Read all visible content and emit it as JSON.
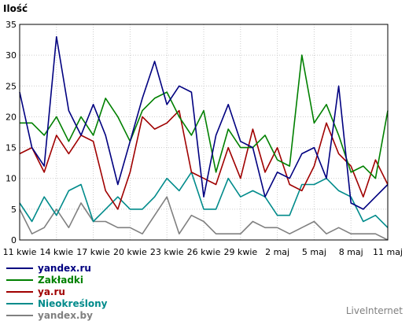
{
  "brand": "LiveInternet",
  "chart_data": {
    "type": "line",
    "ylabel": "Ilość",
    "ylim": [
      0,
      35
    ],
    "y_ticks": [
      0,
      5,
      10,
      15,
      20,
      25,
      30,
      35
    ],
    "x": [
      "11 kwie",
      "12 kwie",
      "13 kwie",
      "14 kwie",
      "15 kwie",
      "16 kwie",
      "17 kwie",
      "18 kwie",
      "19 kwie",
      "20 kwie",
      "21 kwie",
      "22 kwie",
      "23 kwie",
      "24 kwie",
      "25 kwie",
      "26 kwie",
      "27 kwie",
      "28 kwie",
      "29 kwie",
      "30 kwie",
      "1 maj",
      "2 maj",
      "3 maj",
      "4 maj",
      "5 maj",
      "6 maj",
      "7 maj",
      "8 maj",
      "9 maj",
      "10 maj",
      "11 maj"
    ],
    "x_tick_labels": [
      {
        "index": 0,
        "label": "11 kwie"
      },
      {
        "index": 3,
        "label": "14 kwie"
      },
      {
        "index": 6,
        "label": "17 kwie"
      },
      {
        "index": 9,
        "label": "20 kwie"
      },
      {
        "index": 12,
        "label": "23 kwie"
      },
      {
        "index": 15,
        "label": "26 kwie"
      },
      {
        "index": 18,
        "label": "29 kwie"
      },
      {
        "index": 21,
        "label": "2 maj"
      },
      {
        "index": 24,
        "label": "5 maj"
      },
      {
        "index": 27,
        "label": "8 maj"
      },
      {
        "index": 30,
        "label": "11 maj"
      }
    ],
    "grid": true,
    "legend_position": "bottom-left",
    "series": [
      {
        "name": "yandex.ru",
        "color": "#000080",
        "values": [
          24,
          15,
          12,
          33,
          21,
          17,
          22,
          17,
          9,
          16,
          23,
          29,
          22,
          25,
          24,
          7,
          17,
          22,
          16,
          15,
          7,
          11,
          10,
          14,
          15,
          10,
          25,
          6,
          5,
          7,
          9
        ]
      },
      {
        "name": "Zakładki",
        "color": "#008000",
        "values": [
          19,
          19,
          17,
          20,
          16,
          20,
          17,
          23,
          20,
          16,
          21,
          23,
          24,
          20,
          17,
          21,
          11,
          18,
          15,
          15,
          17,
          13,
          12,
          30,
          19,
          22,
          17,
          11,
          12,
          10,
          21
        ]
      },
      {
        "name": "ya.ru",
        "color": "#a00000",
        "values": [
          14,
          15,
          11,
          17,
          14,
          17,
          16,
          8,
          5,
          11,
          20,
          18,
          19,
          21,
          11,
          10,
          9,
          15,
          10,
          18,
          11,
          15,
          9,
          8,
          12,
          19,
          14,
          12,
          7,
          13,
          9
        ]
      },
      {
        "name": "Nieokreślony",
        "color": "#008b8b",
        "values": [
          6,
          3,
          7,
          4,
          8,
          9,
          3,
          5,
          7,
          5,
          5,
          7,
          10,
          8,
          11,
          5,
          5,
          10,
          7,
          8,
          7,
          4,
          4,
          9,
          9,
          10,
          8,
          7,
          3,
          4,
          2
        ]
      },
      {
        "name": "yandex.by",
        "color": "#808080",
        "values": [
          5,
          1,
          2,
          5,
          2,
          6,
          3,
          3,
          2,
          2,
          1,
          4,
          7,
          1,
          4,
          3,
          1,
          1,
          1,
          3,
          2,
          2,
          1,
          2,
          3,
          1,
          2,
          1,
          1,
          1,
          0
        ]
      }
    ]
  }
}
